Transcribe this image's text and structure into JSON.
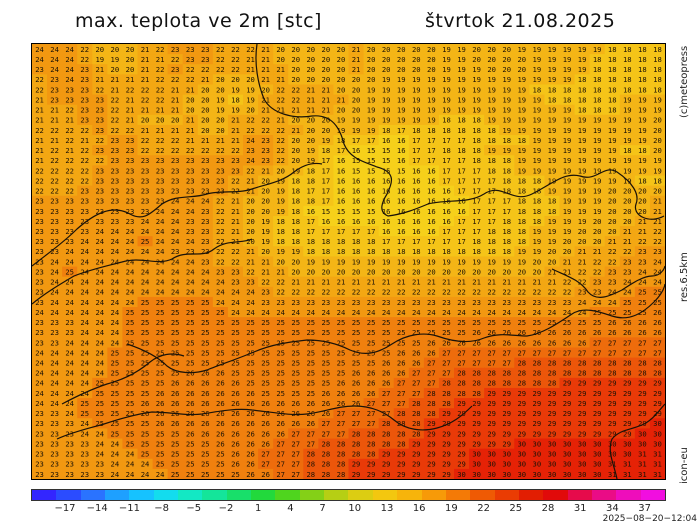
{
  "header": {
    "title": "max. teplota ve 2m [stc]",
    "date": "štvrtok 21.08.2025"
  },
  "side": {
    "credit": "(c)meteopress",
    "resolution": "res.6.5km",
    "model": "icon-eu"
  },
  "colorbar": {
    "colors": [
      "#3326ff",
      "#2b4cff",
      "#2a73ff",
      "#1ea0ff",
      "#16c2ff",
      "#13dcee",
      "#13e8c4",
      "#14e59a",
      "#18df6a",
      "#22d93c",
      "#4fd51e",
      "#84d017",
      "#b6cf14",
      "#dccd12",
      "#f3c70f",
      "#f7b40b",
      "#f79a08",
      "#f47a06",
      "#ef5a04",
      "#ea3c03",
      "#e21e02",
      "#e10a0a",
      "#e60b4b",
      "#ea0c86",
      "#ee0dbb",
      "#f10ee0"
    ],
    "ticks": [
      "−17",
      "−14",
      "−11",
      "−8",
      "−5",
      "−2",
      "1",
      "4",
      "7",
      "10",
      "13",
      "16",
      "19",
      "22",
      "25",
      "28",
      "31",
      "34",
      "37"
    ]
  },
  "timestamp": "2025−08−20−12:04",
  "map_data": {
    "grid_rows": [
      "24 24 24 22 20 20 20 21 22 23 23 23 22 22 22 21 20 20 20 20 20 21 20 20 20 20 20 19 19 20 20 20 19 19 19 19 19 19 18 18 18 18",
      "24 24 24 22 19 19 20 21 21 22 23 23 22 22 21 21 20 20 20 20 20 21 20 20 20 20 20 19 19 20 20 20 20 19 19 19 19 18 18 18 18 18",
      "23 24 24 23 21 20 20 21 22 23 22 22 22 22 21 21 21 20 20 20 20 21 20 20 20 20 20 19 19 19 20 20 20 19 19 19 19 18 18 18 18 18",
      "22 23 24 23 21 21 21 21 22 22 22 21 20 20 20 21 21 20 20 20 20 20 20 19 19 19 19 19 19 19 19 19 19 19 19 19 18 18 18 18 18 18",
      "22 23 23 23 22 21 22 22 22 21 21 20 20 19 19 20 22 22 21 21 20 20 19 19 19 19 19 19 19 19 19 19 19 18 18 18 18 18 18 18 18 18",
      "21 23 23 23 23 22 21 22 22 21 20 20 19 18 19 21 22 22 21 21 21 20 19 19 19 19 19 19 19 19 19 19 19 19 18 18 18 18 18 19 19 19",
      "21 21 22 23 23 22 21 21 21 21 20 20 19 19 20 21 21 21 21 21 20 20 19 19 19 19 19 19 19 19 19 19 19 19 19 19 18 18 18 19 19 19",
      "21 21 21 23 23 22 21 20 20 20 21 20 20 21 22 22 21 20 20 20 19 19 19 19 19 19 19 18 18 18 19 19 19 19 19 19 19 19 19 19 19 20",
      "22 22 22 22 23 22 22 21 21 21 21 20 20 21 22 22 22 21 20 20 19 19 19 18 17 18 18 18 18 18 18 19 19 19 19 19 19 19 19 19 19 20",
      "21 21 22 21 22 23 23 22 22 22 21 21 21 21 24 23 22 20 20 19 18 17 17 16 16 17 17 17 17 18 18 18 18 19 19 19 19 19 19 19 19 20",
      "21 22 21 22 23 23 23 22 22 22 22 22 22 22 23 23 22 20 19 18 17 16 15 15 16 17 17 18 18 18 19 19 19 19 19 19 19 19 19 18 18 20",
      "21 22 22 22 22 23 23 23 23 23 23 23 23 23 24 23 22 20 19 17 16 15 15 15 16 17 17 17 17 18 18 18 19 19 19 19 19 19 19 19 19 19",
      "22 22 22 22 23 23 23 23 23 23 23 23 23 23 22 21 20 19 18 17 16 15 15 15 15 16 16 17 17 17 18 18 19 19 19 19 19 19 19 19 19 19",
      "22 22 22 22 23 23 23 23 23 23 23 23 23 22 21 20 19 18 18 17 16 16 16 16 16 16 16 17 17 17 17 18 18 18 19 19 19 19 19 19 18 18",
      "22 22 22 23 23 23 23 23 23 23 23 23 23 22 21 20 19 18 17 17 16 16 16 16 16 16 16 16 17 17 17 18 18 18 19 19 19 19 20 20 20 20",
      "23 23 23 23 23 23 23 23 23 24 24 24 22 21 20 20 19 18 18 17 16 16 16 16 16 16 16 16 16 17 17 17 18 18 18 19 19 19 20 20 20 21",
      "23 23 23 23 23 23 23 23 24 24 24 23 22 21 20 20 19 18 16 15 15 15 15 16 16 16 16 16 16 17 17 17 18 18 18 19 19 19 20 20 20 21",
      "23 23 23 23 23 23 23 24 24 24 23 23 22 21 20 19 18 18 17 16 16 16 16 16 16 16 16 16 17 17 17 18 18 18 19 19 19 20 20 20 21 21",
      "23 23 23 23 24 24 24 24 24 24 23 23 22 21 20 19 18 18 17 17 17 17 17 16 16 16 16 17 17 17 18 18 18 19 19 19 20 20 20 21 21 22",
      "23 23 23 24 24 24 24 25 24 24 24 23 22 21 20 19 18 18 18 18 18 18 18 17 17 17 17 17 17 18 18 18 18 19 19 20 20 20 21 21 22 22",
      "23 23 24 24 24 24 24 24 24 23 23 23 22 22 21 20 19 19 18 18 18 18 18 18 18 18 18 18 18 18 18 18 19 19 20 20 21 21 22 22 23 23",
      "23 24 24 24 24 24 24 24 24 24 24 23 22 22 21 21 20 20 19 19 19 19 19 19 19 19 19 19 19 19 19 19 19 20 20 21 21 22 22 23 23 24",
      "23 24 25 24 24 24 24 24 24 24 24 24 23 23 22 21 21 20 20 20 20 20 20 20 20 20 20 20 20 20 20 20 20 20 21 21 22 22 23 23 24 24",
      "23 24 24 24 24 24 24 24 24 24 24 24 24 23 23 22 22 21 21 21 21 21 21 21 21 21 21 21 21 21 21 21 21 21 21 22 22 23 23 24 24 24",
      "23 24 24 24 24 24 24 24 24 24 24 24 24 24 24 23 22 22 22 22 22 22 22 22 22 22 22 22 22 22 22 22 22 22 22 22 23 23 24 24 25 25",
      "23 24 24 24 24 24 24 25 25 25 25 25 24 24 24 23 23 23 23 23 23 23 23 23 23 23 23 23 23 23 23 23 23 23 23 23 24 24 24 25 25 25",
      "24 24 24 24 24 24 25 25 25 25 25 25 25 24 24 24 24 24 24 24 24 24 24 24 24 24 24 24 24 24 24 24 24 24 24 24 24 25 25 25 25 26",
      "23 23 23 24 24 24 25 25 25 25 25 25 25 25 25 25 25 25 25 25 25 25 25 25 25 25 25 25 25 25 25 25 25 25 25 25 25 25 26 26 26 26",
      "23 23 23 24 24 24 25 25 25 25 25 25 25 25 25 25 25 25 25 25 25 25 25 25 25 25 25 25 25 26 26 26 26 26 26 26 26 26 26 26 26 26",
      "23 23 24 24 24 24 25 25 25 25 25 25 25 25 25 25 25 25 25 25 25 25 25 25 25 25 26 26 26 26 26 26 26 26 26 26 26 27 27 27 27 27",
      "24 24 24 24 24 25 25 25 25 25 25 25 25 25 25 25 25 25 25 25 25 25 25 25 26 26 26 27 27 27 27 27 27 27 27 27 27 27 27 27 27 27",
      "24 24 24 24 24 25 25 25 25 25 25 25 25 25 25 25 25 25 25 25 25 25 25 26 26 26 27 27 27 27 27 27 28 28 28 28 28 28 28 28 28 28",
      "24 24 24 24 24 25 25 25 25 25 26 26 26 25 25 25 25 25 25 25 25 26 26 26 26 27 27 27 28 28 28 28 28 28 28 28 28 28 28 28 28 28",
      "24 24 24 24 25 25 25 25 25 26 26 26 26 26 25 25 25 25 25 25 26 26 26 26 27 27 27 28 28 28 28 28 28 28 28 29 29 29 29 29 29 29",
      "24 24 24 24 25 25 25 25 26 26 26 26 26 26 26 25 25 25 25 26 26 26 26 27 27 27 28 28 28 28 29 29 29 29 29 29 29 29 29 29 29 29",
      "24 24 24 25 25 25 25 26 26 26 26 26 26 26 26 26 26 26 26 26 26 26 27 27 27 28 28 28 29 29 29 29 29 29 29 29 29 29 29 29 29 29",
      "23 23 24 25 25 25 25 26 26 26 26 26 26 26 26 26 26 26 26 26 27 27 27 27 28 28 28 29 29 29 29 29 29 29 29 29 29 29 29 29 29 29",
      "23 23 23 24 25 25 25 25 26 26 26 26 26 26 26 26 26 26 26 27 27 27 27 28 28 28 29 29 29 29 29 29 29 29 29 29 29 29 29 29 29 30",
      "23 23 23 24 24 25 25 25 25 25 26 26 26 26 26 26 26 27 27 27 27 28 28 28 28 28 29 29 29 29 29 29 29 29 29 29 29 29 29 29 30 30",
      "23 23 23 23 24 24 25 25 25 25 25 25 26 26 26 26 27 27 27 28 28 28 28 28 28 29 29 29 29 29 29 29 30 30 30 30 30 30 30 30 30 30",
      "23 23 23 23 24 24 24 25 25 25 25 25 25 26 26 27 27 27 28 28 28 28 28 29 29 29 29 29 29 30 30 30 30 30 30 30 30 30 30 30 31 31",
      "23 23 23 23 23 24 24 24 25 25 25 25 25 26 26 27 27 27 28 28 28 29 29 29 29 29 29 29 29 30 30 30 30 30 30 30 30 30 31 31 31 31",
      "23 23 23 23 23 24 24 24 24 25 25 25 25 25 26 26 27 27 28 28 28 29 29 29 29 29 29 29 30 30 30 30 30 30 30 30 30 30 31 31 31 31"
    ]
  }
}
